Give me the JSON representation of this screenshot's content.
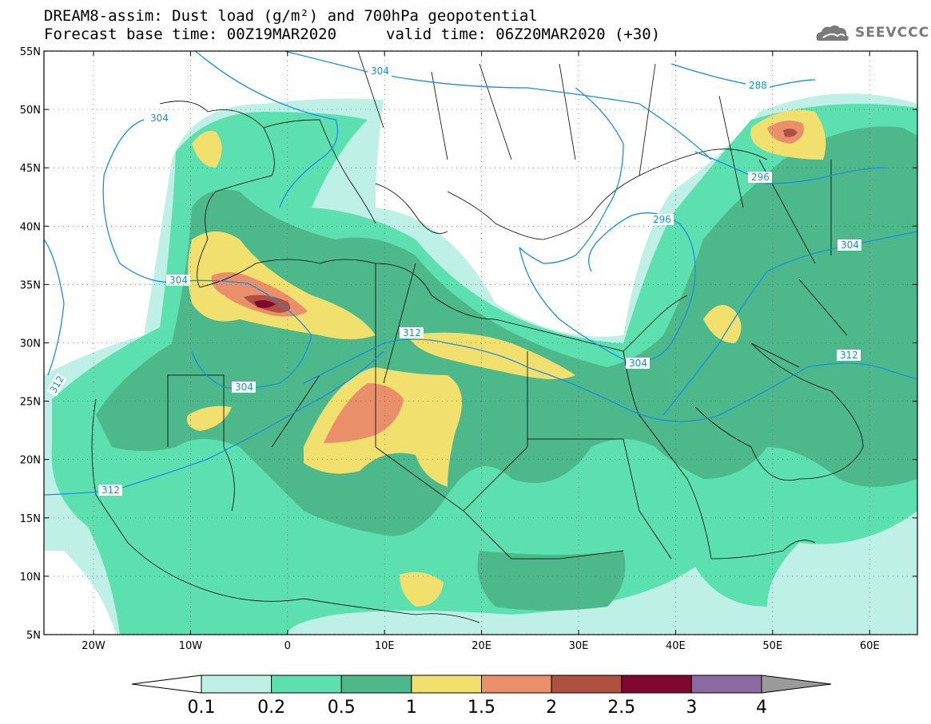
{
  "title_line1": "DREAM8-assim: Dust load (g/m²) and 700hPa geopotential",
  "title_base": "Forecast base time: 00Z19MAR2020",
  "title_valid": "valid time: 06Z20MAR2020 (+30)",
  "logo_text": "SEEVCCC",
  "lat_labels": [
    "55N",
    "50N",
    "45N",
    "40N",
    "35N",
    "30N",
    "25N",
    "20N",
    "15N",
    "10N",
    "5N"
  ],
  "lon_labels": [
    "20W",
    "10W",
    "0",
    "10E",
    "20E",
    "30E",
    "40E",
    "50E",
    "60E"
  ],
  "contour_labels": [
    "304",
    "288",
    "304",
    "296",
    "296",
    "304",
    "312",
    "304",
    "312",
    "304",
    "312",
    "312"
  ],
  "colorbar": {
    "ticks": [
      "0.1",
      "0.2",
      "0.5",
      "1",
      "1.5",
      "2",
      "2.5",
      "3",
      "4"
    ],
    "colors": [
      "#bff0e6",
      "#5de0b0",
      "#4db88a",
      "#f2e06e",
      "#e9906a",
      "#b05040",
      "#800830",
      "#8a6aa0"
    ],
    "over_color": "#9a9a9a"
  },
  "fill_colors": {
    "c01": "#bff0e6",
    "c02": "#5de0b0",
    "c05": "#4db88a",
    "c1": "#f2e06e",
    "c15": "#e9906a",
    "c2": "#b05040",
    "c25": "#800830"
  },
  "contour_color": "#1a8fe0"
}
